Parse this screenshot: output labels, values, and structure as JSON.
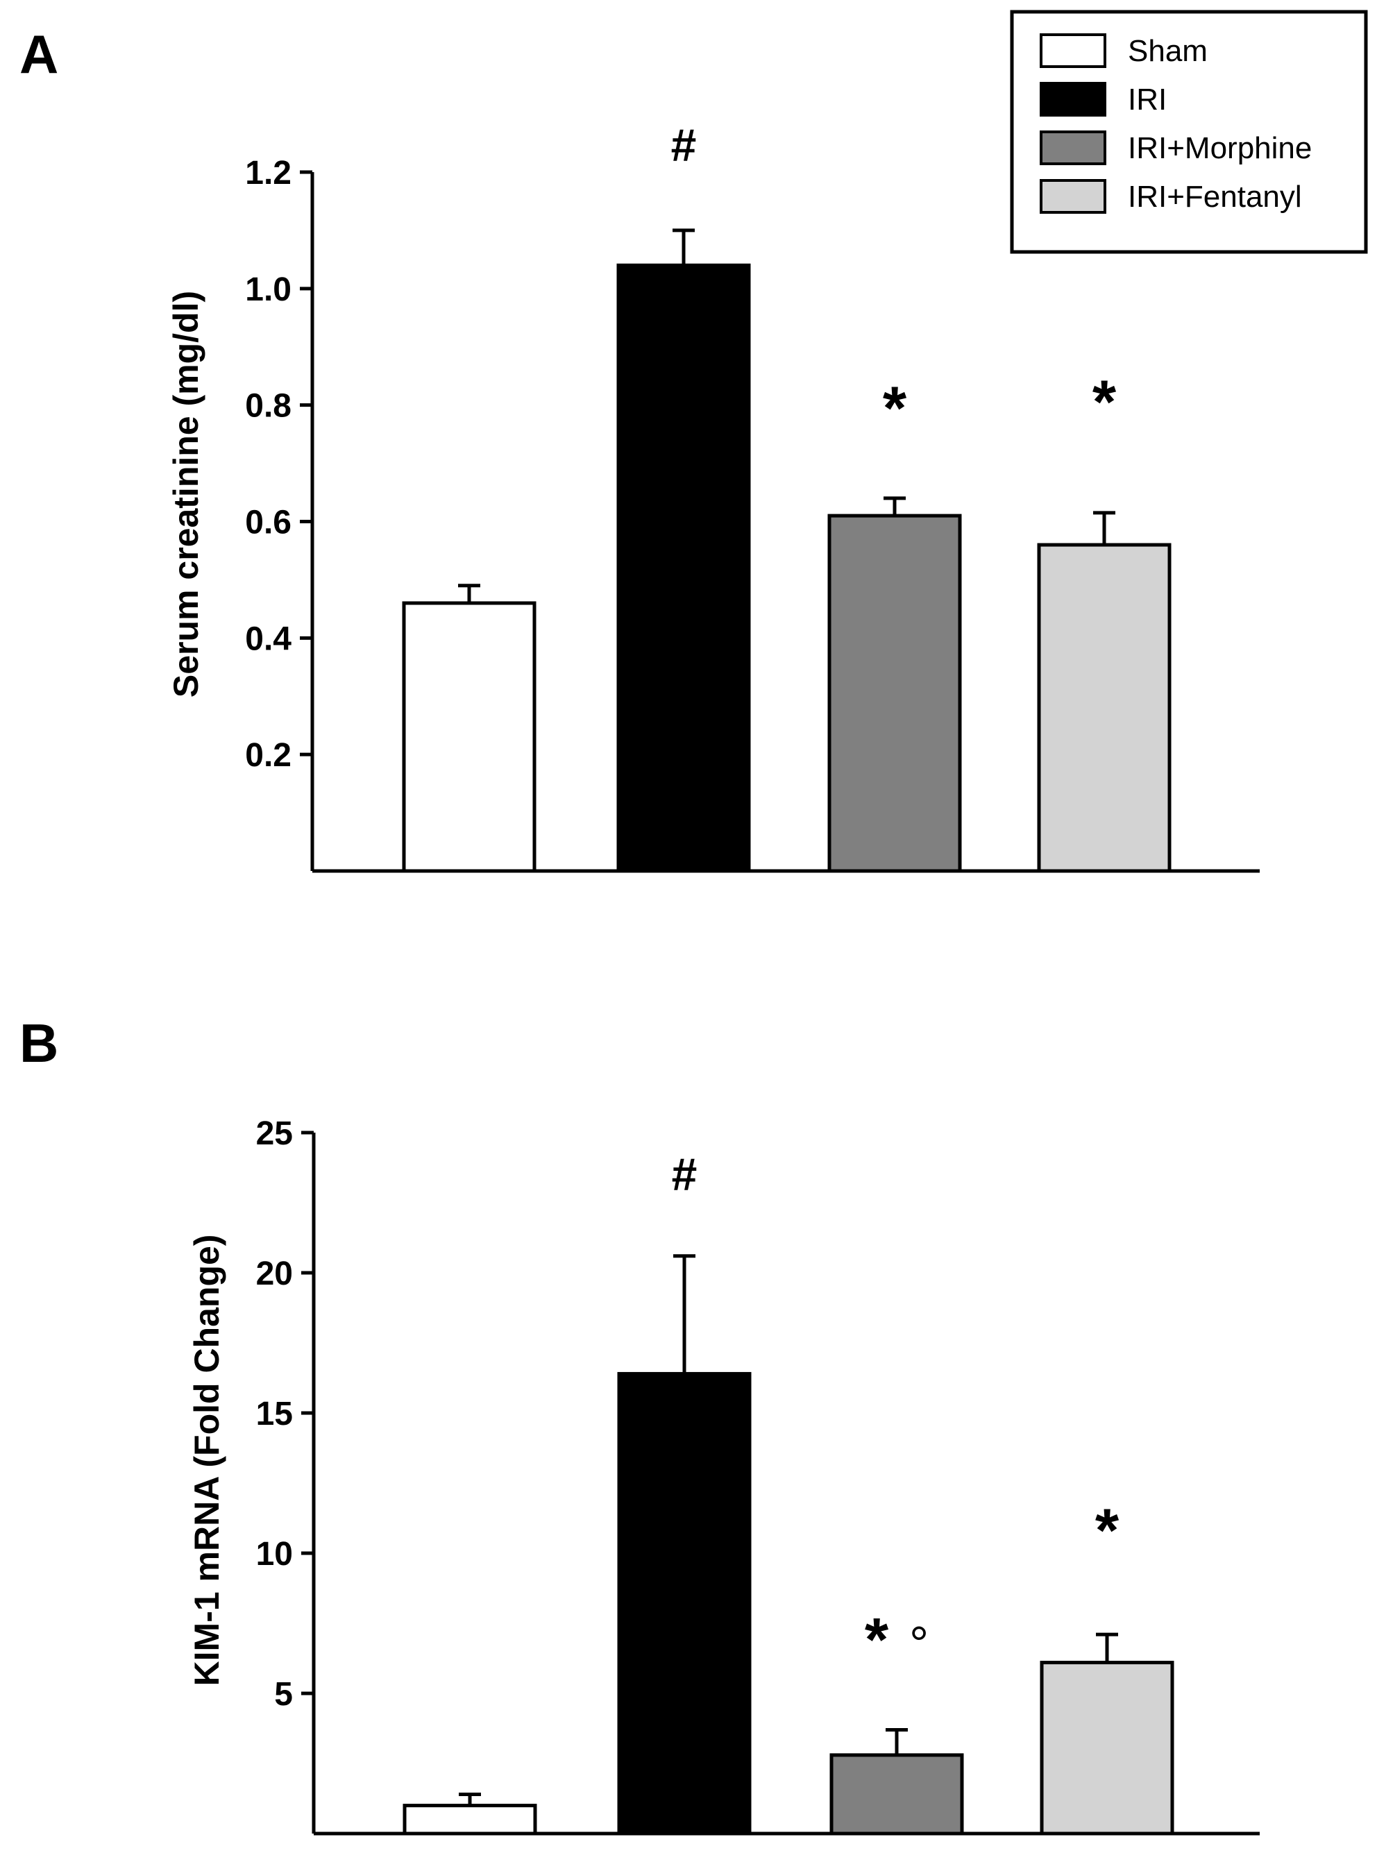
{
  "legend": {
    "entries": [
      {
        "label": "Sham",
        "color": "#ffffff"
      },
      {
        "label": "IRI",
        "color": "#000000"
      },
      {
        "label": "IRI+Morphine",
        "color": "#808080"
      },
      {
        "label": "IRI+Fentanyl",
        "color": "#d3d3d3"
      }
    ]
  },
  "chart_data": [
    {
      "panel": "A",
      "type": "bar",
      "categories": [
        "Sham",
        "IRI",
        "IRI+Morphine",
        "IRI+Fentanyl"
      ],
      "values": [
        0.46,
        1.04,
        0.61,
        0.56
      ],
      "errors": [
        0.03,
        0.06,
        0.03,
        0.055
      ],
      "colors": [
        "#ffffff",
        "#000000",
        "#808080",
        "#d3d3d3"
      ],
      "annotations": [
        "",
        "#",
        "*",
        "*"
      ],
      "title": "",
      "xlabel": "",
      "ylabel": "Serum creatinine (mg/dl)",
      "ylim": [
        0,
        1.2
      ],
      "yticks": [
        0.2,
        0.4,
        0.6,
        0.8,
        1.0,
        1.2
      ],
      "ytick_labels": [
        "0.2",
        "0.4",
        "0.6",
        "0.8",
        "1.0",
        "1.2"
      ]
    },
    {
      "panel": "B",
      "type": "bar",
      "categories": [
        "Sham",
        "IRI",
        "IRI+Morphine",
        "IRI+Fentanyl"
      ],
      "values": [
        1.0,
        16.4,
        2.8,
        6.1
      ],
      "errors": [
        0.4,
        4.2,
        0.9,
        1.0
      ],
      "colors": [
        "#ffffff",
        "#000000",
        "#808080",
        "#d3d3d3"
      ],
      "annotations": [
        "",
        "#",
        "* °",
        "*"
      ],
      "title": "",
      "xlabel": "",
      "ylabel": "KIM-1 mRNA (Fold Change)",
      "ylim": [
        0,
        25
      ],
      "yticks": [
        5,
        10,
        15,
        20,
        25
      ],
      "ytick_labels": [
        "5",
        "10",
        "15",
        "20",
        "25"
      ]
    }
  ]
}
